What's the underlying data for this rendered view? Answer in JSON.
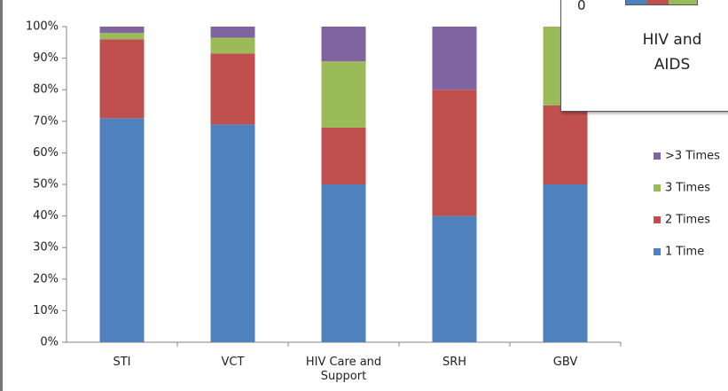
{
  "chart_data": {
    "type": "stacked_bar_100",
    "categories": [
      "STI",
      "VCT",
      "HIV Care and Support",
      "SRH",
      "GBV"
    ],
    "series": [
      {
        "name": "1 Time",
        "color": "#4f81bd",
        "values": [
          71,
          69,
          50,
          40,
          50
        ]
      },
      {
        "name": "2 Times",
        "color": "#c0504d",
        "values": [
          25,
          22.5,
          18,
          40,
          25
        ]
      },
      {
        "name": "3 Times",
        "color": "#9bbb59",
        "values": [
          2,
          5,
          21,
          0,
          25
        ]
      },
      {
        "name": ">3 Times",
        "color": "#8064a2",
        "values": [
          2,
          3.5,
          11,
          20,
          0
        ]
      }
    ],
    "ylim": [
      0,
      100
    ],
    "yticks": [
      {
        "value": 0,
        "label": "0%"
      },
      {
        "value": 10,
        "label": "10%"
      },
      {
        "value": 20,
        "label": "20%"
      },
      {
        "value": 30,
        "label": "30%"
      },
      {
        "value": 40,
        "label": "40%"
      },
      {
        "value": 50,
        "label": "50%"
      },
      {
        "value": 60,
        "label": "60%"
      },
      {
        "value": 70,
        "label": "70%"
      },
      {
        "value": 80,
        "label": "80%"
      },
      {
        "value": 90,
        "label": "90%"
      },
      {
        "value": 100,
        "label": "100%"
      }
    ],
    "grid": false,
    "legend": "right"
  },
  "popup": {
    "axis_label": "0",
    "lines": [
      "HIV and",
      "AIDS"
    ]
  }
}
